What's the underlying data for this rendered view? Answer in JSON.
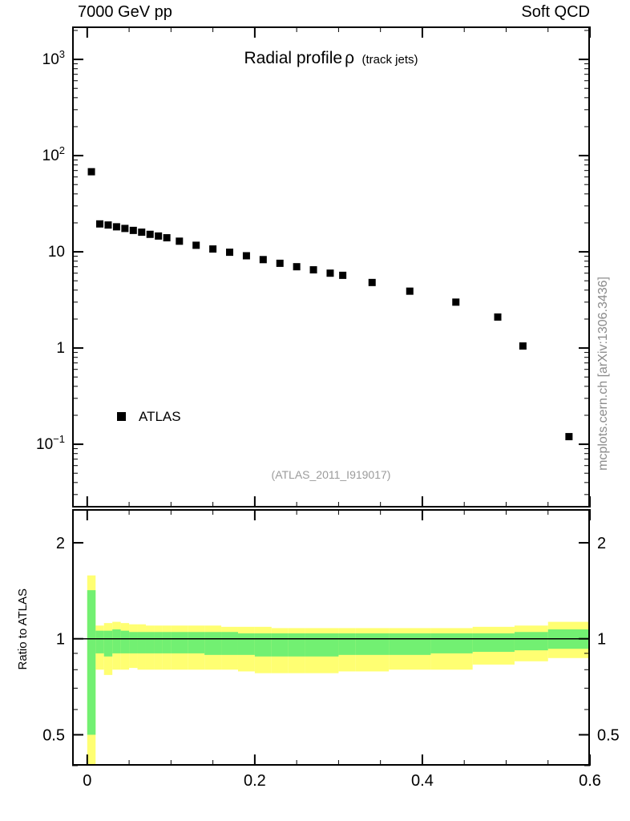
{
  "header": {
    "left": "7000 GeV pp",
    "right": "Soft QCD"
  },
  "watermark": "mcplots.cern.ch [arXiv:1306.3436]",
  "chart_data": [
    {
      "name": "main-panel",
      "type": "scatter",
      "title_main": "Radial profile",
      "title_symbol": "ρ",
      "title_note": "(track jets)",
      "annotation": "(ATLAS_2011_I919017)",
      "legend": {
        "label": "ATLAS",
        "marker": "square",
        "marker_color": "#000000"
      },
      "xlim": [
        -0.018,
        0.6
      ],
      "ylim_log": [
        0.022,
        2200
      ],
      "yticks": [
        {
          "v": 1000,
          "base": "10",
          "sup": "3"
        },
        {
          "v": 100,
          "base": "10",
          "sup": "2"
        },
        {
          "v": 10,
          "base": "10",
          "sup": ""
        },
        {
          "v": 1,
          "base": "1",
          "sup": ""
        },
        {
          "v": 0.1,
          "base": "10",
          "sup": "−1"
        }
      ],
      "xtick_minor_step": 0.05,
      "xtick_major_step": 0.2,
      "series": [
        {
          "name": "ATLAS",
          "marker": "square",
          "color": "#000000",
          "x": [
            0.005,
            0.015,
            0.025,
            0.035,
            0.045,
            0.055,
            0.065,
            0.075,
            0.085,
            0.095,
            0.11,
            0.13,
            0.15,
            0.17,
            0.19,
            0.21,
            0.23,
            0.25,
            0.27,
            0.29,
            0.305,
            0.34,
            0.385,
            0.44,
            0.49,
            0.52,
            0.575
          ],
          "y": [
            68,
            19.5,
            19,
            18.2,
            17.5,
            16.7,
            16,
            15.2,
            14.6,
            14,
            12.9,
            11.7,
            10.7,
            9.9,
            9.1,
            8.3,
            7.6,
            7.0,
            6.5,
            6.0,
            5.7,
            4.8,
            3.9,
            3.0,
            2.1,
            1.05,
            0.12
          ]
        }
      ]
    },
    {
      "name": "ratio-panel",
      "type": "band",
      "ylabel": "Ratio to ATLAS",
      "xlim": [
        -0.018,
        0.6
      ],
      "ylim_log": [
        0.4,
        2.55
      ],
      "reference_line": 1,
      "yticks": [
        {
          "v": 2,
          "label": "2"
        },
        {
          "v": 1,
          "label": "1"
        },
        {
          "v": 0.5,
          "label": "0.5"
        }
      ],
      "yminor": [
        0.4,
        0.6,
        0.7,
        0.8,
        0.9
      ],
      "xticks_major": [
        {
          "v": 0,
          "label": "0"
        },
        {
          "v": 0.2,
          "label": "0.2"
        },
        {
          "v": 0.4,
          "label": "0.4"
        },
        {
          "v": 0.6,
          "label": "0.6"
        }
      ],
      "xtick_minor_step": 0.05,
      "band_colors": {
        "outer": "#ffff72",
        "inner": "#72f072"
      },
      "bins": [
        [
          0.0,
          0.01,
          0.36,
          1.58,
          0.5,
          1.42
        ],
        [
          0.01,
          0.02,
          0.8,
          1.1,
          0.9,
          1.06
        ],
        [
          0.02,
          0.03,
          0.77,
          1.12,
          0.88,
          1.06
        ],
        [
          0.03,
          0.04,
          0.8,
          1.13,
          0.9,
          1.07
        ],
        [
          0.04,
          0.05,
          0.8,
          1.12,
          0.9,
          1.06
        ],
        [
          0.05,
          0.06,
          0.81,
          1.11,
          0.9,
          1.05
        ],
        [
          0.06,
          0.07,
          0.8,
          1.11,
          0.9,
          1.05
        ],
        [
          0.07,
          0.08,
          0.8,
          1.1,
          0.9,
          1.05
        ],
        [
          0.08,
          0.09,
          0.8,
          1.1,
          0.9,
          1.05
        ],
        [
          0.09,
          0.1,
          0.8,
          1.1,
          0.9,
          1.05
        ],
        [
          0.1,
          0.12,
          0.8,
          1.1,
          0.9,
          1.05
        ],
        [
          0.12,
          0.14,
          0.8,
          1.1,
          0.9,
          1.05
        ],
        [
          0.14,
          0.16,
          0.8,
          1.1,
          0.89,
          1.05
        ],
        [
          0.16,
          0.18,
          0.8,
          1.09,
          0.89,
          1.05
        ],
        [
          0.18,
          0.2,
          0.79,
          1.09,
          0.89,
          1.04
        ],
        [
          0.2,
          0.22,
          0.78,
          1.09,
          0.88,
          1.04
        ],
        [
          0.22,
          0.24,
          0.78,
          1.08,
          0.88,
          1.04
        ],
        [
          0.24,
          0.26,
          0.78,
          1.08,
          0.88,
          1.04
        ],
        [
          0.26,
          0.28,
          0.78,
          1.08,
          0.88,
          1.04
        ],
        [
          0.28,
          0.3,
          0.78,
          1.08,
          0.88,
          1.04
        ],
        [
          0.3,
          0.32,
          0.79,
          1.08,
          0.89,
          1.04
        ],
        [
          0.32,
          0.36,
          0.79,
          1.08,
          0.89,
          1.04
        ],
        [
          0.36,
          0.41,
          0.8,
          1.08,
          0.89,
          1.04
        ],
        [
          0.41,
          0.46,
          0.8,
          1.08,
          0.9,
          1.04
        ],
        [
          0.46,
          0.51,
          0.83,
          1.09,
          0.91,
          1.04
        ],
        [
          0.51,
          0.55,
          0.85,
          1.1,
          0.92,
          1.05
        ],
        [
          0.55,
          0.6,
          0.87,
          1.13,
          0.93,
          1.07
        ]
      ]
    }
  ]
}
